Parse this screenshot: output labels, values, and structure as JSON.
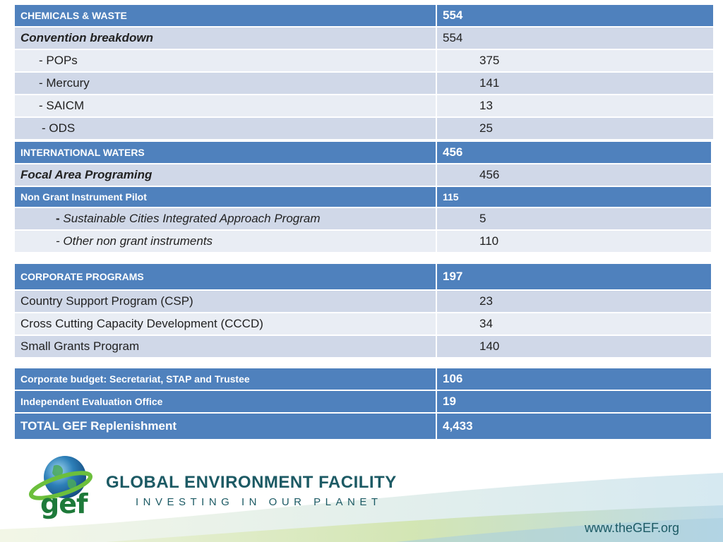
{
  "chemicals": {
    "header": {
      "label": "CHEMICALS & WASTE",
      "value": "554"
    },
    "subtitle": {
      "label": "Convention breakdown",
      "value": "554"
    },
    "rows": [
      {
        "label": "- POPs",
        "value": "375"
      },
      {
        "label": "- Mercury",
        "value": "141"
      },
      {
        "label": "- SAICM",
        "value": "13"
      },
      {
        "label": "- ODS",
        "value": "25"
      }
    ]
  },
  "waters": {
    "header": {
      "label": "INTERNATIONAL WATERS",
      "value": "456"
    },
    "subtitle": {
      "label": "Focal Area Programing",
      "value": "456"
    }
  },
  "nongrant": {
    "header": {
      "label": "Non Grant Instrument Pilot",
      "value": "115"
    },
    "rows": [
      {
        "dash": "- ",
        "label": "Sustainable Cities Integrated Approach Program",
        "value": "5"
      },
      {
        "label": "- Other non grant instruments",
        "value": "110"
      }
    ]
  },
  "corporate": {
    "header": {
      "label": "CORPORATE PROGRAMS",
      "value": "197"
    },
    "rows": [
      {
        "label": "Country Support Program (CSP)",
        "value": "23"
      },
      {
        "label": "Cross Cutting Capacity Development (CCCD)",
        "value": "34"
      },
      {
        "label": "Small Grants Program",
        "value": "140"
      }
    ]
  },
  "budget": {
    "rows": [
      {
        "label": "Corporate budget: Secretariat, STAP and Trustee",
        "value": "106"
      },
      {
        "label": "Independent Evaluation Office",
        "value": "19"
      },
      {
        "label": "TOTAL GEF Replenishment",
        "value": "4,433"
      }
    ]
  },
  "footer": {
    "logo_text": "gef",
    "title": "GLOBAL ENVIRONMENT FACILITY",
    "tagline": "INVESTING IN OUR PLANET",
    "website": "www.theGEF.org",
    "icon": "globe-icon"
  },
  "colors": {
    "header_blue": "#4f81bd",
    "row_dark": "#d0d8e8",
    "row_light": "#e9edf4",
    "brand_teal": "#1c5a64",
    "brand_green": "#1e7a3a"
  }
}
